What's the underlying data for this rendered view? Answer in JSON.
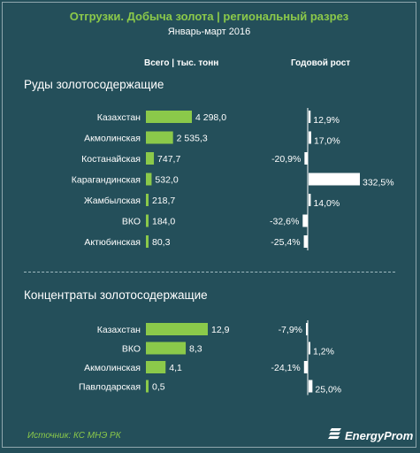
{
  "header": {
    "title": "Отгрузки. Добыча золота | региональный разрез",
    "subtitle": "Январь-март 2016"
  },
  "columns": {
    "volume": "Всего | тыс. тонн",
    "growth": "Годовой рост"
  },
  "footer": {
    "source": "Источник: КС МНЭ РК",
    "brand": "EnergyProm"
  },
  "colors": {
    "background": "#244f5a",
    "bar_volume": "#8bc94a",
    "bar_growth": "#ffffff",
    "title": "#8bc94a"
  },
  "chart_data": [
    {
      "type": "bar",
      "title": "Руды золотосодержащие",
      "categories": [
        "Казахстан",
        "Акмолинская",
        "Костанайская",
        "Карагандинская",
        "Жамбылская",
        "ВКО",
        "Актюбинская"
      ],
      "series": [
        {
          "name": "Всего | тыс. тонн",
          "values": [
            4298.0,
            2535.3,
            747.7,
            532.0,
            218.7,
            184.0,
            80.3
          ],
          "labels": [
            "4 298,0",
            "2 535,3",
            "747,7",
            "532,0",
            "218,7",
            "184,0",
            "80,3"
          ]
        },
        {
          "name": "Годовой рост",
          "values": [
            12.9,
            17.0,
            -20.9,
            332.5,
            14.0,
            -32.6,
            -25.4
          ],
          "labels": [
            "12,9%",
            "17,0%",
            "-20,9%",
            "332,5%",
            "14,0%",
            "-32,6%",
            "-25,4%"
          ]
        }
      ]
    },
    {
      "type": "bar",
      "title": "Концентраты золотосодержащие",
      "categories": [
        "Казахстан",
        "ВКО",
        "Акмолинская",
        "Павлодарская"
      ],
      "series": [
        {
          "name": "Всего | тыс. тонн",
          "values": [
            12.9,
            8.3,
            4.1,
            0.5
          ],
          "labels": [
            "12,9",
            "8,3",
            "4,1",
            "0,5"
          ]
        },
        {
          "name": "Годовой рост",
          "values": [
            -7.9,
            1.2,
            -24.1,
            25.0
          ],
          "labels": [
            "-7,9%",
            "1,2%",
            "-24,1%",
            "25,0%"
          ]
        }
      ]
    }
  ]
}
